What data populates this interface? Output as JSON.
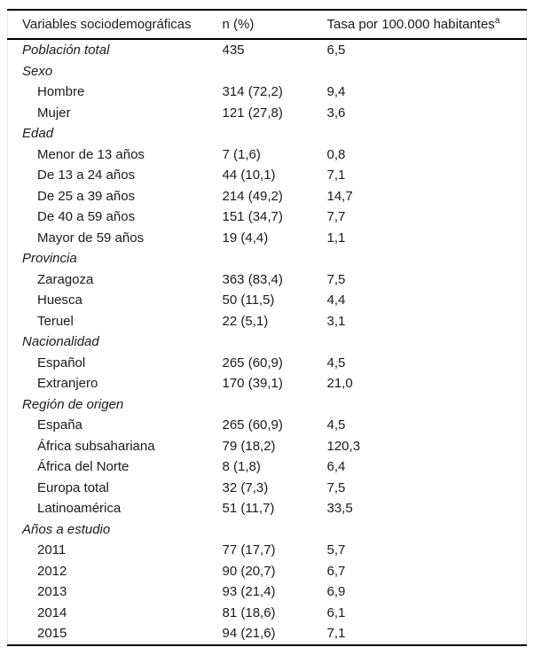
{
  "table": {
    "header": {
      "col1": "Variables sociodemográficas",
      "col2": "n (%)",
      "col3": "Tasa por 100.000 habitantes",
      "col3_superscript": "a"
    },
    "rows": [
      {
        "label": "Población total",
        "type": "category",
        "n": "435",
        "rate": "6,5"
      },
      {
        "label": "Sexo",
        "type": "category",
        "n": "",
        "rate": ""
      },
      {
        "label": "Hombre",
        "type": "item",
        "n": "314 (72,2)",
        "rate": "9,4"
      },
      {
        "label": "Mujer",
        "type": "item",
        "n": "121 (27,8)",
        "rate": "3,6"
      },
      {
        "label": "Edad",
        "type": "category",
        "n": "",
        "rate": ""
      },
      {
        "label": "Menor de 13 años",
        "type": "item",
        "n": "7 (1,6)",
        "rate": "0,8"
      },
      {
        "label": "De 13 a 24 años",
        "type": "item",
        "n": "44 (10,1)",
        "rate": "7,1"
      },
      {
        "label": "De 25 a 39 años",
        "type": "item",
        "n": "214 (49,2)",
        "rate": "14,7"
      },
      {
        "label": "De 40 a 59 años",
        "type": "item",
        "n": "151 (34,7)",
        "rate": "7,7"
      },
      {
        "label": "Mayor de 59 años",
        "type": "item",
        "n": "19 (4,4)",
        "rate": "1,1"
      },
      {
        "label": "Provincia",
        "type": "category",
        "n": "",
        "rate": ""
      },
      {
        "label": "Zaragoza",
        "type": "item",
        "n": "363 (83,4)",
        "rate": "7,5"
      },
      {
        "label": "Huesca",
        "type": "item",
        "n": "50 (11,5)",
        "rate": "4,4"
      },
      {
        "label": "Teruel",
        "type": "item",
        "n": "22 (5,1)",
        "rate": "3,1"
      },
      {
        "label": "Nacionalidad",
        "type": "category",
        "n": "",
        "rate": ""
      },
      {
        "label": "Español",
        "type": "item",
        "n": "265 (60,9)",
        "rate": "4,5"
      },
      {
        "label": "Extranjero",
        "type": "item",
        "n": "170 (39,1)",
        "rate": "21,0"
      },
      {
        "label": "Región de origen",
        "type": "category",
        "n": "",
        "rate": ""
      },
      {
        "label": "España",
        "type": "item",
        "n": "265 (60,9)",
        "rate": "4,5"
      },
      {
        "label": "África subsahariana",
        "type": "item",
        "n": "79 (18,2)",
        "rate": "120,3"
      },
      {
        "label": "África del Norte",
        "type": "item",
        "n": "8 (1,8)",
        "rate": "6,4"
      },
      {
        "label": "Europa total",
        "type": "item",
        "n": "32 (7,3)",
        "rate": "7,5"
      },
      {
        "label": "Latinoamérica",
        "type": "item",
        "n": "51 (11,7)",
        "rate": "33,5"
      },
      {
        "label": "Años a estudio",
        "type": "category",
        "n": "",
        "rate": ""
      },
      {
        "label": "2011",
        "type": "item",
        "n": "77 (17,7)",
        "rate": "5,7"
      },
      {
        "label": "2012",
        "type": "item",
        "n": "90 (20,7)",
        "rate": "6,7"
      },
      {
        "label": "2013",
        "type": "item",
        "n": "93 (21,4)",
        "rate": "6,9"
      },
      {
        "label": "2014",
        "type": "item",
        "n": "81 (18,6)",
        "rate": "6,1"
      },
      {
        "label": "2015",
        "type": "item",
        "n": "94 (21,6)",
        "rate": "7,1"
      }
    ]
  },
  "colors": {
    "text": "#1a1a1a",
    "rule": "#000000",
    "side_border": "#e4e4e4",
    "background": "#ffffff"
  }
}
